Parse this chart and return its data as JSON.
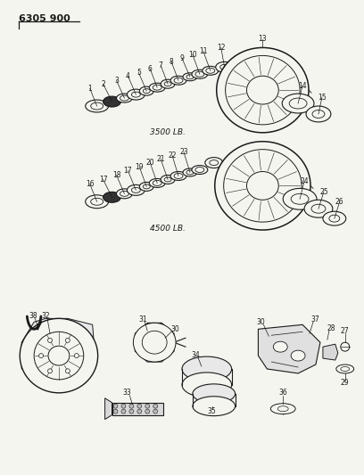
{
  "title": "6305 900",
  "bg": "#f5f5f0",
  "lc": "#1a1a1a",
  "fig_width": 4.08,
  "fig_height": 5.33,
  "dpi": 100,
  "label_3500": "3500 LB.",
  "label_4500": "4500 LB."
}
